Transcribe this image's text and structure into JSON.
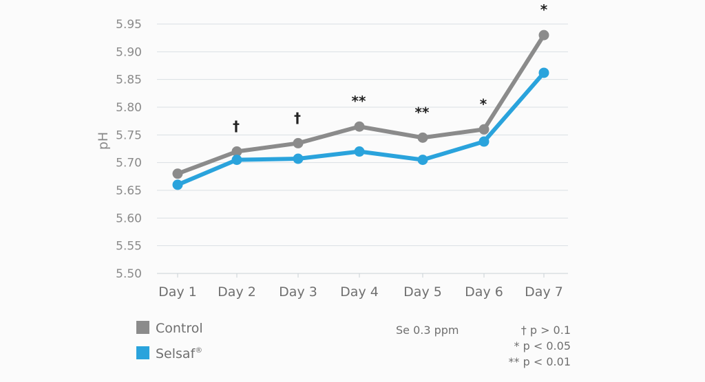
{
  "chart_data": {
    "type": "line",
    "ylabel": "pH",
    "xlabel": "",
    "categories": [
      "Day 1",
      "Day 2",
      "Day 3",
      "Day 4",
      "Day 5",
      "Day 6",
      "Day 7"
    ],
    "ylim": [
      5.5,
      5.95
    ],
    "yticks": [
      "5.50",
      "5.55",
      "5.60",
      "5.65",
      "5.70",
      "5.75",
      "5.80",
      "5.85",
      "5.90",
      "5.95"
    ],
    "grid": true,
    "series": [
      {
        "name": "Control",
        "color": "#8b8b8b",
        "values": [
          5.68,
          5.72,
          5.735,
          5.765,
          5.745,
          5.76,
          5.93
        ]
      },
      {
        "name": "Selsaf",
        "name_superscript": "®",
        "color": "#2aa3dc",
        "values": [
          5.66,
          5.705,
          5.707,
          5.72,
          5.705,
          5.738,
          5.862
        ]
      }
    ],
    "significance": [
      "",
      "†",
      "†",
      "**",
      "**",
      "*",
      "*"
    ],
    "legend_placement": "bottom-left",
    "annotations": {
      "dose": "Se 0.3 ppm",
      "key": [
        "† p > 0.1",
        "* p < 0.05",
        "** p < 0.01"
      ]
    }
  }
}
